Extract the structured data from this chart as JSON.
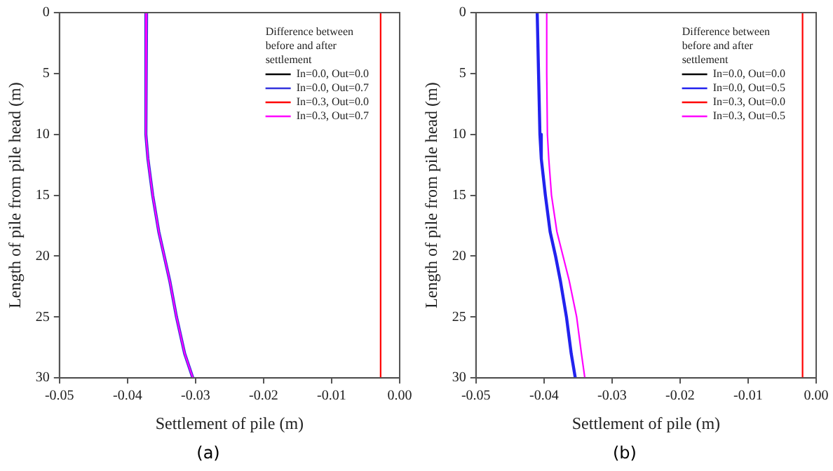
{
  "chart_data": [
    {
      "type": "line",
      "xlabel": "Settlement of pile (m)",
      "ylabel": "Length of pile from pile head (m)",
      "legend_title": "Difference between before and after settlement",
      "legend": "top right",
      "annotations": [
        "(a)"
      ],
      "xlim": [
        -0.05,
        0
      ],
      "xticks": [
        -0.05,
        -0.04,
        -0.03,
        -0.02,
        -0.01,
        {
          "value": 0,
          "label": "0.00"
        }
      ],
      "ylim": [
        30,
        0
      ],
      "yticks": [
        0,
        5,
        10,
        15,
        20,
        25,
        30
      ],
      "series": [
        {
          "name": "In=0.0, Out=0.0",
          "color": "#000000",
          "x": [
            null,
            null
          ],
          "values": [
            null,
            null
          ]
        },
        {
          "name": "In=0.0, Out=0.7",
          "color": "#3333dd",
          "x": [
            -0.0372,
            -0.0373,
            -0.0373,
            -0.0373,
            -0.0373,
            -0.037,
            -0.0363,
            -0.0354,
            -0.0346,
            -0.0338,
            -0.0328,
            -0.0316,
            -0.0304
          ],
          "values": [
            0,
            2,
            5,
            8,
            10,
            12,
            15,
            18,
            20,
            22,
            25,
            28,
            30
          ]
        },
        {
          "name": "In=0.3, Out=0.0",
          "color": "#ff0000",
          "x": [
            -0.0028,
            -0.0028
          ],
          "values": [
            0,
            30
          ]
        },
        {
          "name": "In=0.3, Out=0.7",
          "color": "#ff00ff",
          "x": [
            -0.0372,
            -0.0373,
            -0.0373,
            -0.0373,
            -0.0373,
            -0.037,
            -0.0363,
            -0.0354,
            -0.0346,
            -0.0338,
            -0.0328,
            -0.0316,
            -0.0304
          ],
          "values": [
            0,
            2,
            5,
            8,
            10,
            12,
            15,
            18,
            20,
            22,
            25,
            28,
            30
          ]
        }
      ]
    },
    {
      "type": "line",
      "xlabel": "Settlement of pile (m)",
      "ylabel": "Length of pile from pile head (m)",
      "legend_title": "Difference between before and after settlement",
      "legend": "top right",
      "annotations": [
        "(b)"
      ],
      "xlim": [
        -0.05,
        0
      ],
      "xticks": [
        -0.05,
        -0.04,
        -0.03,
        -0.02,
        -0.01,
        {
          "value": 0,
          "label": "0.00"
        }
      ],
      "ylim": [
        30,
        0
      ],
      "yticks": [
        0,
        5,
        10,
        15,
        20,
        25,
        30
      ],
      "series": [
        {
          "name": "In=0.0, Out=0.0",
          "color": "#000000",
          "x": [
            null,
            null
          ],
          "values": [
            null,
            null
          ]
        },
        {
          "name": "In=0.0, Out=0.5",
          "color": "#2222ee",
          "x": [
            -0.041,
            -0.0408,
            -0.0406,
            -0.0404,
            -0.0398,
            -0.0391,
            -0.0383,
            -0.0376,
            -0.0367,
            -0.036,
            -0.0354
          ],
          "values": [
            0,
            5,
            10,
            12,
            15,
            18,
            20,
            22,
            25,
            28,
            30
          ]
        },
        {
          "name": "In=0.3, Out=0.0",
          "color": "#ff0000",
          "x": [
            -0.002,
            -0.002
          ],
          "values": [
            0,
            30
          ]
        },
        {
          "name": "In=0.3, Out=0.5",
          "color": "#ff00ff",
          "x": [
            -0.0396,
            -0.0396,
            -0.0395,
            -0.0393,
            -0.0389,
            -0.0381,
            -0.0372,
            -0.0363,
            -0.0352,
            -0.0345,
            -0.034
          ],
          "values": [
            0,
            5,
            10,
            12,
            15,
            18,
            20,
            22,
            25,
            28,
            30
          ]
        }
      ]
    }
  ]
}
